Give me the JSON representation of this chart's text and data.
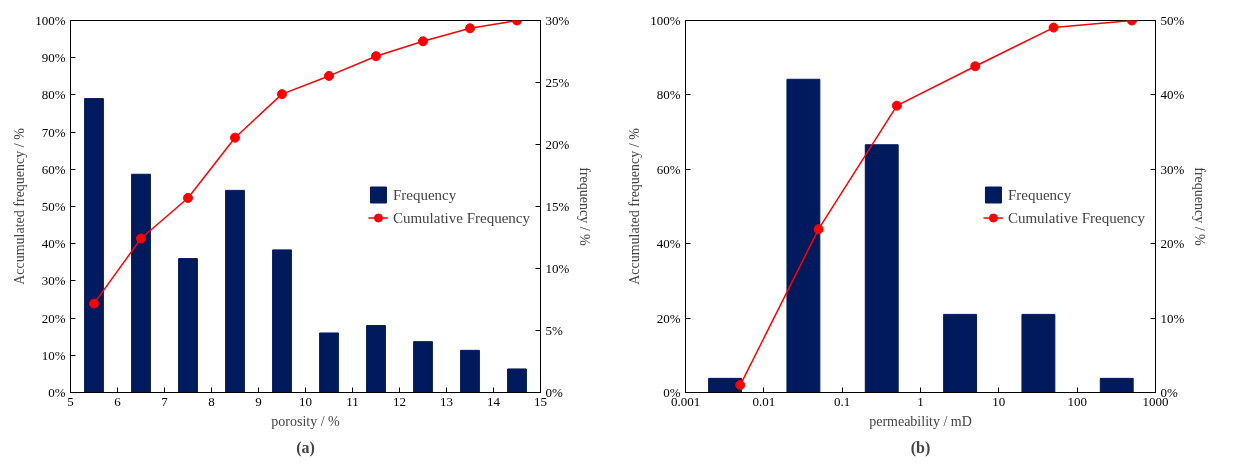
{
  "chart_data": [
    {
      "type": "bar",
      "xlabel": "porosity / %",
      "ylabel": "Accumulated frequency / %",
      "y2label": "frequency / %",
      "annotations": [
        "(a)"
      ],
      "x": [
        5.5,
        6.5,
        7.5,
        8.5,
        9.5,
        10.5,
        11.5,
        12.5,
        13.5,
        14.5
      ],
      "xlim": [
        5,
        15
      ],
      "xticks": [
        5,
        6,
        7,
        8,
        9,
        10,
        11,
        12,
        13,
        14,
        15
      ],
      "ylim": [
        0,
        100
      ],
      "yticks": [
        {
          "value": 0,
          "label": "0%"
        },
        {
          "value": 10,
          "label": "10%"
        },
        {
          "value": 20,
          "label": "20%"
        },
        {
          "value": 30,
          "label": "30%"
        },
        {
          "value": 40,
          "label": "40%"
        },
        {
          "value": 50,
          "label": "50%"
        },
        {
          "value": 60,
          "label": "60%"
        },
        {
          "value": 70,
          "label": "70%"
        },
        {
          "value": 80,
          "label": "80%"
        },
        {
          "value": 90,
          "label": "90%"
        },
        {
          "value": 100,
          "label": "100%"
        }
      ],
      "y2lim": [
        0,
        30
      ],
      "y2ticks": [
        {
          "value": 0,
          "label": "0%"
        },
        {
          "value": 5,
          "label": "5%"
        },
        {
          "value": 10,
          "label": "10%"
        },
        {
          "value": 15,
          "label": "15%"
        },
        {
          "value": 20,
          "label": "20%"
        },
        {
          "value": 25,
          "label": "25%"
        },
        {
          "value": 30,
          "label": "30%"
        }
      ],
      "grid": false,
      "legend": "center right",
      "series": [
        {
          "name": "Frequency",
          "axis": "y2",
          "color": "#001a5e",
          "values": [
            23.7,
            17.6,
            10.8,
            16.3,
            11.5,
            4.8,
            5.4,
            4.1,
            3.4,
            1.9
          ]
        },
        {
          "name": "Cumulative Frequency",
          "type": "line",
          "marker": "circle",
          "color": "#ff0000",
          "values": [
            23.9,
            41.4,
            52.3,
            68.5,
            80.2,
            85.1,
            90.4,
            94.4,
            97.9,
            100
          ]
        }
      ]
    },
    {
      "type": "bar",
      "xlabel": "permeability / mD",
      "ylabel": "Accumulated frequency / %",
      "y2label": "frequency / %",
      "annotations": [
        "(b)"
      ],
      "log": "x",
      "xlim": [
        0.001,
        1000
      ],
      "xticks": [
        {
          "value": 0.001,
          "label": "0.001"
        },
        {
          "value": 0.01,
          "label": "0.01"
        },
        {
          "value": 0.1,
          "label": "0.1"
        },
        1,
        10,
        100,
        1000
      ],
      "ylim": [
        0,
        100
      ],
      "yticks": [
        {
          "value": 0,
          "label": "0%"
        },
        {
          "value": 20,
          "label": "20%"
        },
        {
          "value": 40,
          "label": "40%"
        },
        {
          "value": 60,
          "label": "60%"
        },
        {
          "value": 80,
          "label": "80%"
        },
        {
          "value": 100,
          "label": "100%"
        }
      ],
      "y2lim": [
        0,
        50
      ],
      "y2ticks": [
        {
          "value": 0,
          "label": "0%"
        },
        {
          "value": 10,
          "label": "10%"
        },
        {
          "value": 20,
          "label": "20%"
        },
        {
          "value": 30,
          "label": "30%"
        },
        {
          "value": 40,
          "label": "40%"
        },
        {
          "value": 50,
          "label": "50%"
        }
      ],
      "grid": false,
      "legend": "center right",
      "series": [
        {
          "name": "Frequency",
          "axis": "y2",
          "color": "#001a5e",
          "x": [
            0.0032,
            0.032,
            0.32,
            3.2,
            32,
            320
          ],
          "values": [
            1.9,
            42.1,
            33.3,
            10.5,
            10.5,
            1.9
          ]
        },
        {
          "name": "Cumulative Frequency",
          "type": "line",
          "marker": "circle",
          "color": "#ff0000",
          "x": [
            0.005,
            0.05,
            0.5,
            5,
            50,
            500
          ],
          "values": [
            2.0,
            43.9,
            77.1,
            87.7,
            98.1,
            100
          ]
        }
      ]
    }
  ]
}
